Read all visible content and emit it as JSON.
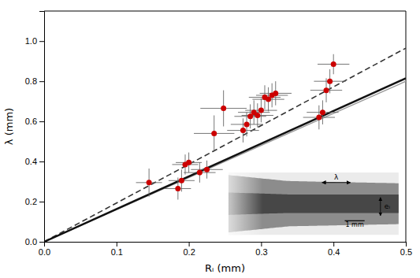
{
  "chart_data": {
    "type": "scatter",
    "xlabel": "Rᵢ (mm)",
    "ylabel": "λ (mm)",
    "xlim": [
      0.0,
      0.5
    ],
    "ylim": [
      0.0,
      1.15
    ],
    "xticks": [
      {
        "value": 0.0,
        "label": "0.0"
      },
      0.1,
      0.2,
      0.3,
      0.4,
      0.5
    ],
    "yticks": [
      {
        "value": 0.0,
        "label": "0.0"
      },
      0.2,
      0.4,
      0.6,
      0.8,
      {
        "value": 1.0,
        "label": "1.0"
      }
    ],
    "series": [
      {
        "type": "line",
        "color": "#999999",
        "line_style": "solid",
        "x": [
          0.0,
          0.5
        ],
        "values": [
          0.0,
          0.8
        ]
      },
      {
        "type": "line",
        "color": "#333333",
        "line_style": "dashed",
        "x": [
          0.0,
          0.5
        ],
        "values": [
          0.0,
          0.965
        ]
      },
      {
        "type": "line",
        "color": "#111111",
        "line_style": "solid",
        "x": [
          0.0,
          0.5
        ],
        "values": [
          0.0,
          0.815
        ]
      },
      {
        "type": "scatter",
        "color": "#cc0000",
        "marker": "circle",
        "x": [
          0.145,
          0.185,
          0.19,
          0.195,
          0.2,
          0.215,
          0.225,
          0.235,
          0.248,
          0.275,
          0.28,
          0.285,
          0.29,
          0.295,
          0.3,
          0.305,
          0.31,
          0.315,
          0.32,
          0.38,
          0.385,
          0.39,
          0.395,
          0.4
        ],
        "values": [
          0.295,
          0.265,
          0.305,
          0.385,
          0.395,
          0.345,
          0.36,
          0.54,
          0.665,
          0.555,
          0.585,
          0.625,
          0.645,
          0.63,
          0.655,
          0.72,
          0.71,
          0.73,
          0.74,
          0.62,
          0.645,
          0.755,
          0.8,
          0.885
        ],
        "xerr": [
          0.018,
          0.018,
          0.018,
          0.018,
          0.018,
          0.022,
          0.022,
          0.028,
          0.032,
          0.022,
          0.022,
          0.022,
          0.022,
          0.022,
          0.022,
          0.022,
          0.022,
          0.022,
          0.022,
          0.022,
          0.022,
          0.022,
          0.022,
          0.022
        ],
        "yerr": [
          0.07,
          0.055,
          0.055,
          0.05,
          0.05,
          0.05,
          0.045,
          0.09,
          0.09,
          0.06,
          0.06,
          0.06,
          0.06,
          0.06,
          0.06,
          0.06,
          0.06,
          0.06,
          0.06,
          0.06,
          0.06,
          0.06,
          0.06,
          0.05
        ]
      }
    ],
    "annotations": [
      "λ",
      "eᵢ",
      "1 mm"
    ]
  }
}
